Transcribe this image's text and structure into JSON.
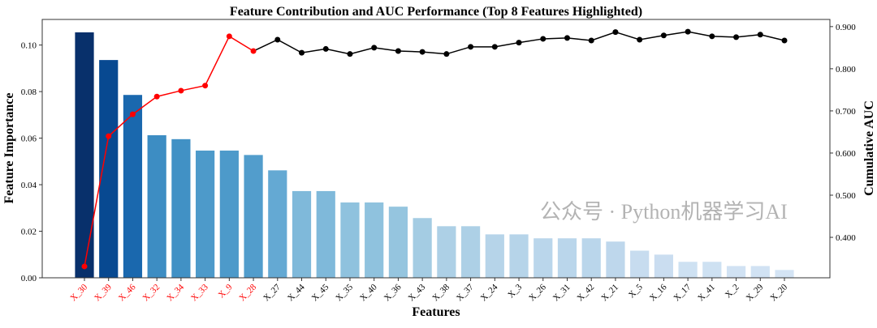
{
  "chart_data": {
    "type": "bar",
    "title": "Feature Contribution and AUC Performance (Top 8 Features Highlighted)",
    "xlabel": "Features",
    "ylabel": "Feature Importance",
    "y2label": "Cumulative AUC",
    "categories": [
      "X_30",
      "X_39",
      "X_46",
      "X_32",
      "X_34",
      "X_33",
      "X_9",
      "X_28",
      "X_27",
      "X_44",
      "X_45",
      "X_35",
      "X_40",
      "X_36",
      "X_43",
      "X_38",
      "X_37",
      "X_24",
      "X_3",
      "X_26",
      "X_31",
      "X_42",
      "X_21",
      "X_5",
      "X_16",
      "X_17",
      "X_41",
      "X_2",
      "X_29",
      "X_20"
    ],
    "highlight_count": 8,
    "highlight_color": "#ff0000",
    "series": [
      {
        "type": "bar",
        "axis": "left",
        "colormap": "Blues",
        "values": [
          0.1056,
          0.0937,
          0.0787,
          0.0614,
          0.0597,
          0.0548,
          0.0548,
          0.0529,
          0.0463,
          0.0374,
          0.0374,
          0.0325,
          0.0325,
          0.0307,
          0.0258,
          0.0223,
          0.0223,
          0.0188,
          0.0188,
          0.0171,
          0.0171,
          0.0171,
          0.0157,
          0.0118,
          0.0101,
          0.007,
          0.007,
          0.0052,
          0.0052,
          0.0035
        ]
      },
      {
        "type": "line",
        "axis": "right",
        "marker": "circle",
        "values": [
          0.331,
          0.64,
          0.692,
          0.734,
          0.748,
          0.76,
          0.877,
          0.842,
          0.869,
          0.838,
          0.847,
          0.835,
          0.85,
          0.842,
          0.84,
          0.835,
          0.852,
          0.852,
          0.862,
          0.871,
          0.873,
          0.867,
          0.887,
          0.869,
          0.879,
          0.888,
          0.877,
          0.875,
          0.881,
          0.867
        ]
      }
    ],
    "ylim": [
      0,
      0.111
    ],
    "yticks": [
      "0.00",
      "0.02",
      "0.04",
      "0.06",
      "0.08",
      "0.10"
    ],
    "y2lim": [
      0.304,
      0.917
    ],
    "y2ticks": [
      "0.400",
      "0.500",
      "0.600",
      "0.700",
      "0.800",
      "0.900"
    ],
    "grid": false,
    "legend": "none"
  },
  "watermark": "公众号 · Python机器学习AI"
}
